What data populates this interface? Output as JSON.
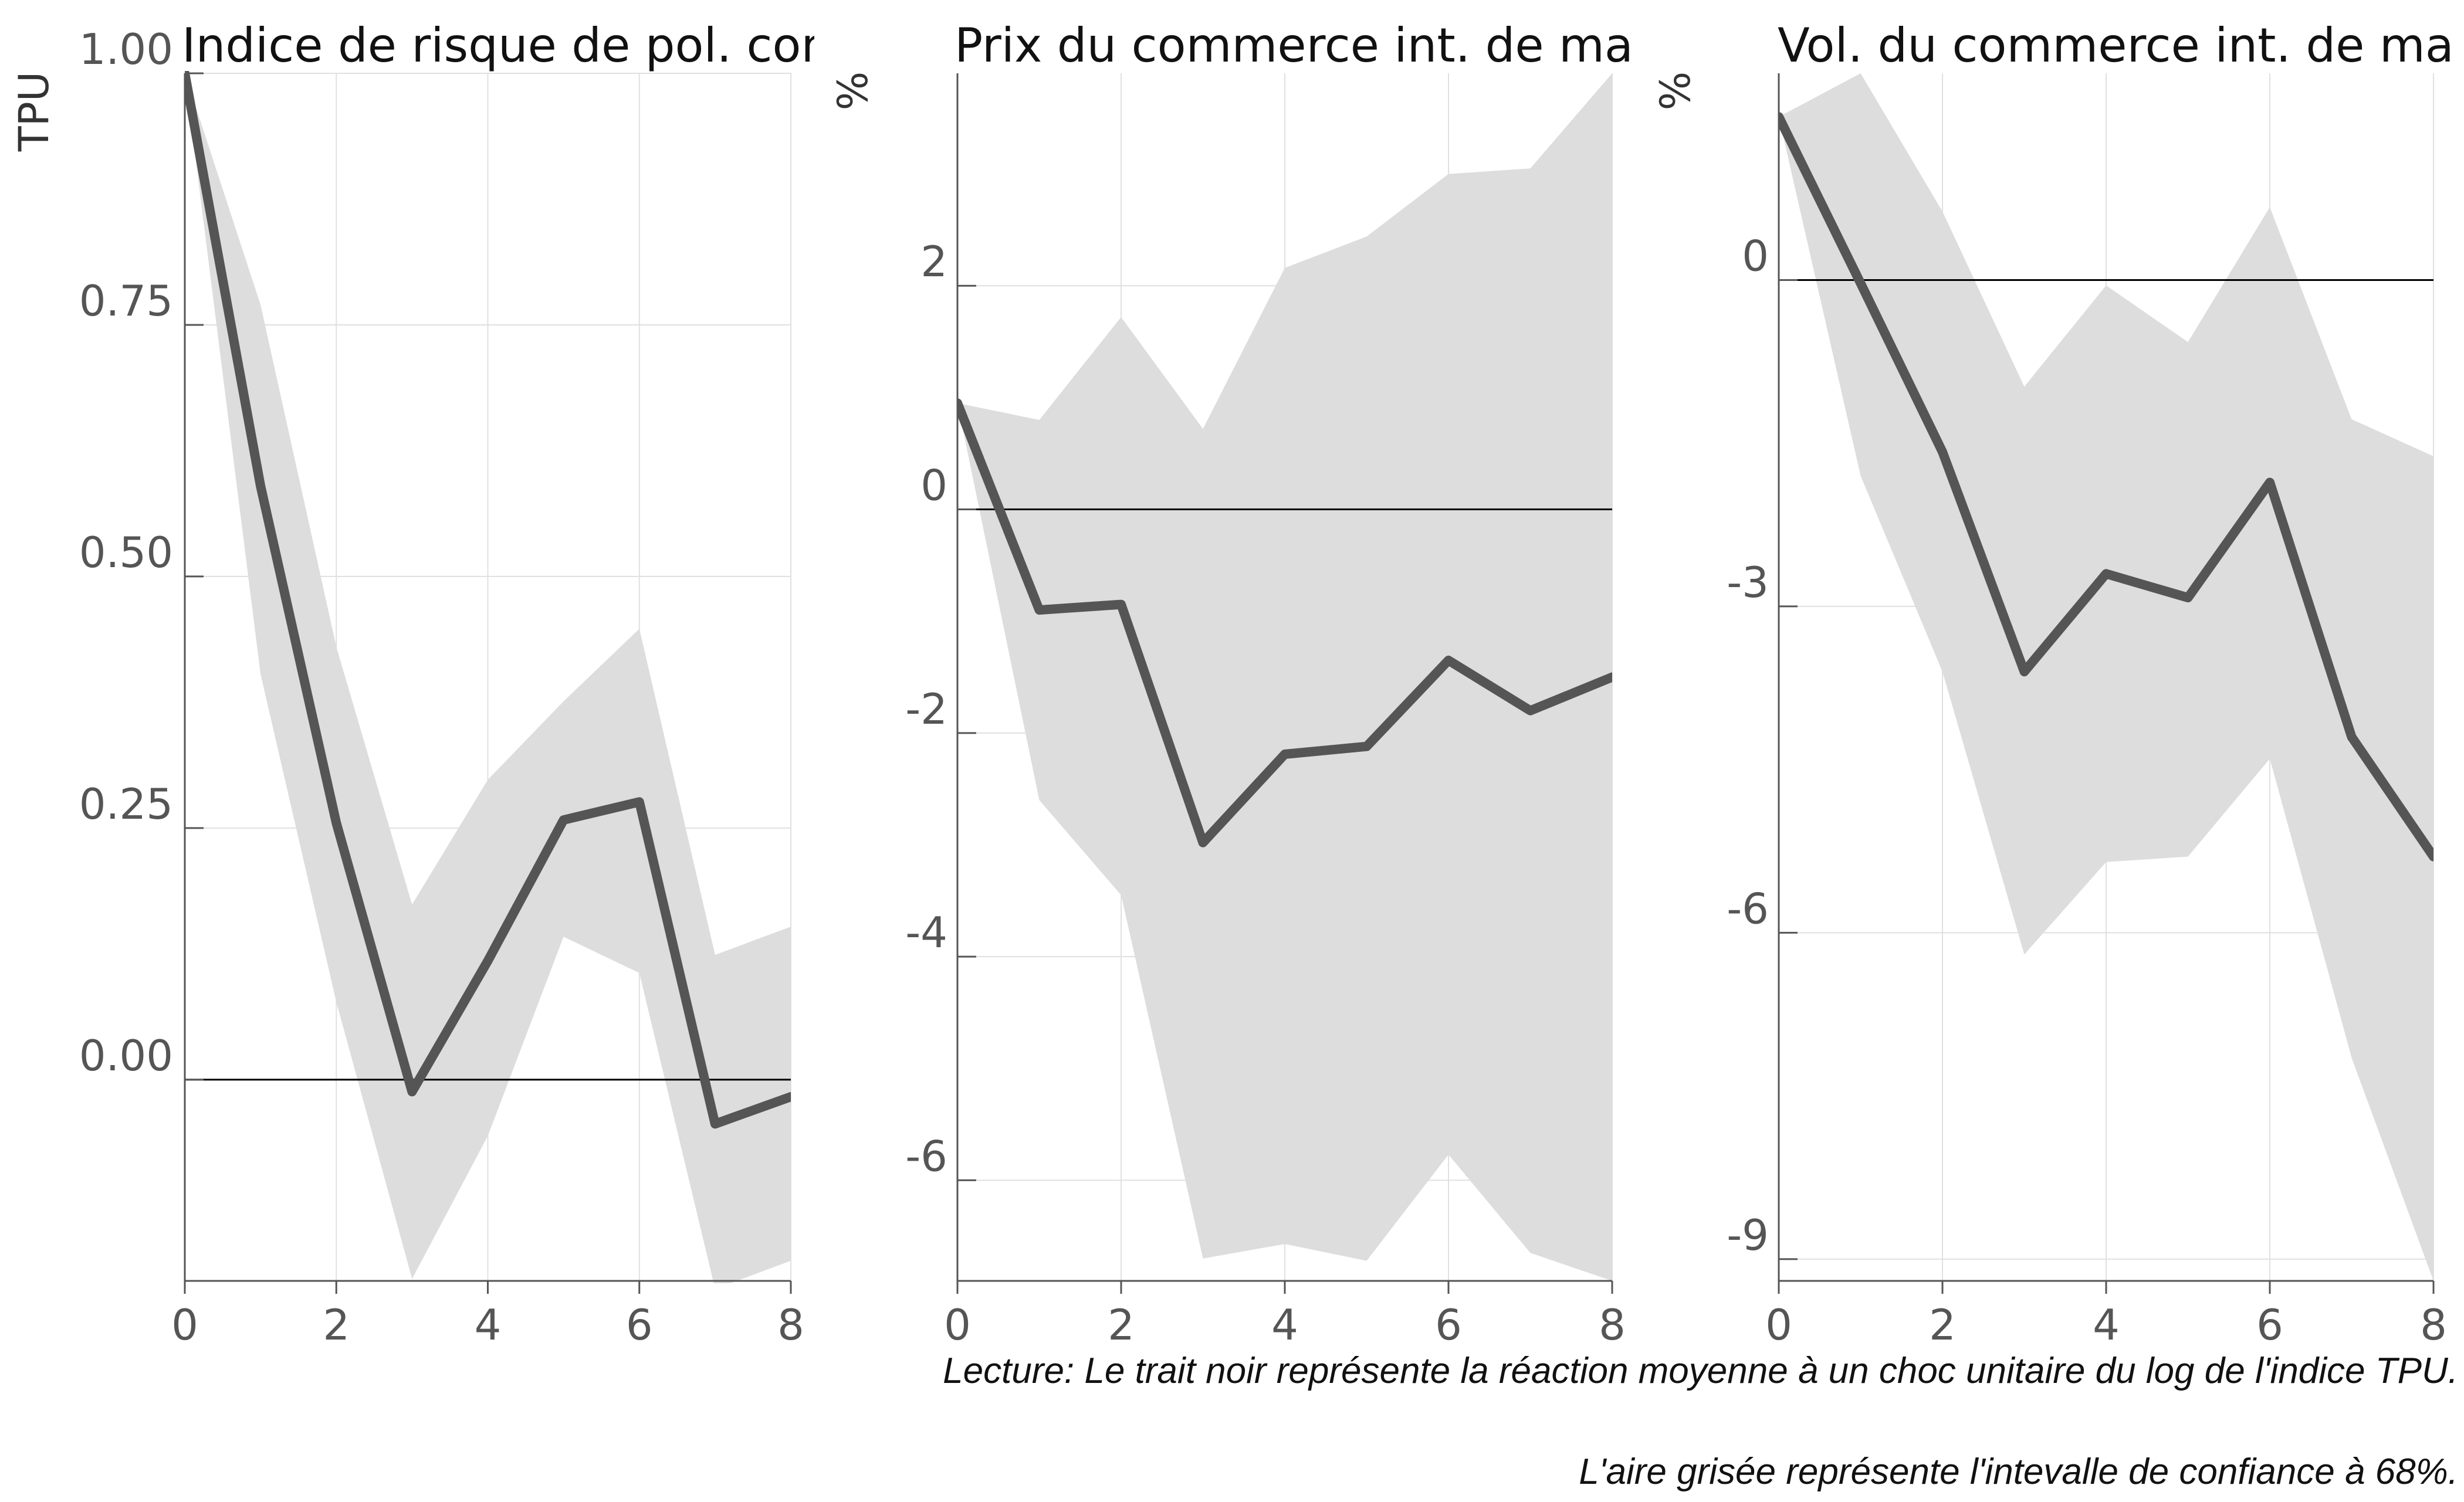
{
  "chart_data": [
    {
      "type": "line",
      "title": "Indice de risque de pol. com",
      "ylabel": "TPU",
      "xlabel": "",
      "xlim": [
        0,
        8
      ],
      "ylim": [
        -0.2,
        1.0
      ],
      "xticks": [
        0,
        2,
        4,
        6,
        8
      ],
      "yticks": [
        0.0,
        0.25,
        0.5,
        0.75,
        1.0
      ],
      "ytick_labels": [
        "0.00",
        "0.25",
        "0.50",
        "0.75",
        "1.00"
      ],
      "zero_line": 0,
      "grid": true,
      "x": [
        0,
        1,
        2,
        3,
        4,
        5,
        6,
        7,
        8
      ],
      "series": [
        {
          "values": [
            1.0,
            0.59,
            0.255,
            -0.012,
            0.118,
            0.258,
            0.276,
            -0.044,
            -0.017
          ]
        }
      ],
      "band": {
        "upper": [
          1.0,
          0.77,
          0.43,
          0.174,
          0.298,
          0.376,
          0.448,
          0.124,
          0.152
        ],
        "lower": [
          1.0,
          0.403,
          0.077,
          -0.198,
          -0.056,
          0.142,
          0.106,
          -0.208,
          -0.18
        ]
      }
    },
    {
      "type": "line",
      "title": "Prix du commerce int. de mar",
      "ylabel": "%",
      "xlabel": "",
      "xlim": [
        0,
        8
      ],
      "ylim": [
        -6.9,
        3.9
      ],
      "xticks": [
        0,
        2,
        4,
        6,
        8
      ],
      "yticks": [
        -6,
        -4,
        -2,
        0,
        2
      ],
      "ytick_labels": [
        "-6",
        "-4",
        "-2",
        "0",
        "2"
      ],
      "zero_line": 0,
      "grid": true,
      "x": [
        0,
        1,
        2,
        3,
        4,
        5,
        6,
        7,
        8
      ],
      "series": [
        {
          "values": [
            0.95,
            -0.9,
            -0.85,
            -2.98,
            -2.19,
            -2.12,
            -1.35,
            -1.8,
            -1.5
          ]
        }
      ],
      "band": {
        "upper": [
          0.95,
          0.8,
          1.72,
          0.72,
          2.16,
          2.44,
          3.0,
          3.05,
          3.9
        ],
        "lower": [
          0.95,
          -2.6,
          -3.45,
          -6.7,
          -6.57,
          -6.72,
          -5.77,
          -6.65,
          -6.9
        ]
      }
    },
    {
      "type": "line",
      "title": "Vol. du commerce int. de marc",
      "ylabel": "%",
      "xlabel": "",
      "xlim": [
        0,
        8
      ],
      "ylim": [
        -9.2,
        1.9
      ],
      "xticks": [
        0,
        2,
        4,
        6,
        8
      ],
      "yticks": [
        -9,
        -6,
        -3,
        0
      ],
      "ytick_labels": [
        "-9",
        "-6",
        "-3",
        "0"
      ],
      "zero_line": 0,
      "grid": true,
      "x": [
        0,
        1,
        2,
        3,
        4,
        5,
        6,
        7,
        8
      ],
      "series": [
        {
          "values": [
            1.5,
            -0.03,
            -1.58,
            -3.6,
            -2.7,
            -2.92,
            -1.86,
            -4.2,
            -5.3
          ]
        }
      ],
      "band": {
        "upper": [
          1.5,
          1.9,
          0.63,
          -0.98,
          -0.05,
          -0.57,
          0.67,
          -1.28,
          -1.62
        ],
        "lower": [
          1.5,
          -1.8,
          -3.6,
          -6.2,
          -5.35,
          -5.3,
          -4.4,
          -7.15,
          -9.2
        ]
      }
    }
  ],
  "caption": {
    "line1": "Lecture: Le trait noir représente la réaction moyenne à un choc unitaire du log de l'indice TPU.",
    "line2": "L'aire grisée représente l'intevalle de confiance à 68%."
  },
  "colors": {
    "line": "#555555",
    "band": "#dddddd",
    "grid": "#e0e0e0",
    "axis": "#555555",
    "zero_line": "#000000"
  }
}
